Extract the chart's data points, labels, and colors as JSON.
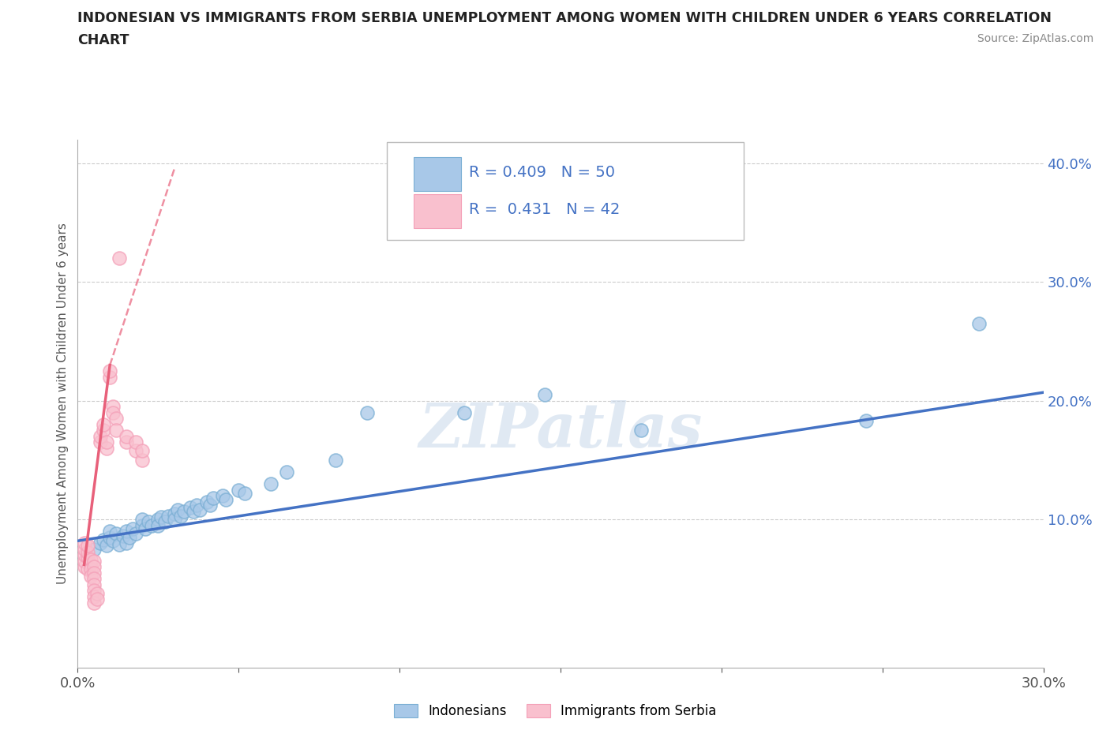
{
  "title_line1": "INDONESIAN VS IMMIGRANTS FROM SERBIA UNEMPLOYMENT AMONG WOMEN WITH CHILDREN UNDER 6 YEARS CORRELATION",
  "title_line2": "CHART",
  "source": "Source: ZipAtlas.com",
  "ylabel": "Unemployment Among Women with Children Under 6 years",
  "xlim": [
    0.0,
    0.3
  ],
  "ylim": [
    -0.025,
    0.42
  ],
  "yticks": [
    0.0,
    0.1,
    0.2,
    0.3,
    0.4
  ],
  "xticks": [
    0.0,
    0.05,
    0.1,
    0.15,
    0.2,
    0.25,
    0.3
  ],
  "xtick_labels": [
    "0.0%",
    "",
    "",
    "",
    "",
    "",
    "30.0%"
  ],
  "ytick_labels": [
    "",
    "10.0%",
    "20.0%",
    "30.0%",
    "40.0%"
  ],
  "legend1_R": "0.409",
  "legend1_N": "50",
  "legend2_R": "0.431",
  "legend2_N": "42",
  "blue_color": "#a8c8e8",
  "blue_edge_color": "#7bafd4",
  "pink_color": "#f9c0ce",
  "pink_edge_color": "#f4a0b8",
  "blue_line_color": "#4472c4",
  "pink_line_color": "#e8607a",
  "watermark": "ZIPatlas",
  "indonesian_scatter": [
    [
      0.005,
      0.075
    ],
    [
      0.007,
      0.08
    ],
    [
      0.008,
      0.083
    ],
    [
      0.009,
      0.078
    ],
    [
      0.01,
      0.085
    ],
    [
      0.01,
      0.09
    ],
    [
      0.011,
      0.082
    ],
    [
      0.012,
      0.088
    ],
    [
      0.013,
      0.079
    ],
    [
      0.014,
      0.086
    ],
    [
      0.015,
      0.08
    ],
    [
      0.015,
      0.09
    ],
    [
      0.016,
      0.085
    ],
    [
      0.017,
      0.092
    ],
    [
      0.018,
      0.088
    ],
    [
      0.02,
      0.095
    ],
    [
      0.02,
      0.1
    ],
    [
      0.021,
      0.092
    ],
    [
      0.022,
      0.098
    ],
    [
      0.023,
      0.095
    ],
    [
      0.025,
      0.1
    ],
    [
      0.025,
      0.095
    ],
    [
      0.026,
      0.102
    ],
    [
      0.027,
      0.098
    ],
    [
      0.028,
      0.103
    ],
    [
      0.03,
      0.105
    ],
    [
      0.03,
      0.1
    ],
    [
      0.031,
      0.108
    ],
    [
      0.032,
      0.103
    ],
    [
      0.033,
      0.107
    ],
    [
      0.035,
      0.11
    ],
    [
      0.036,
      0.107
    ],
    [
      0.037,
      0.112
    ],
    [
      0.038,
      0.108
    ],
    [
      0.04,
      0.115
    ],
    [
      0.041,
      0.112
    ],
    [
      0.042,
      0.118
    ],
    [
      0.045,
      0.12
    ],
    [
      0.046,
      0.117
    ],
    [
      0.05,
      0.125
    ],
    [
      0.052,
      0.122
    ],
    [
      0.06,
      0.13
    ],
    [
      0.065,
      0.14
    ],
    [
      0.08,
      0.15
    ],
    [
      0.09,
      0.19
    ],
    [
      0.12,
      0.19
    ],
    [
      0.145,
      0.205
    ],
    [
      0.175,
      0.175
    ],
    [
      0.245,
      0.183
    ],
    [
      0.28,
      0.265
    ]
  ],
  "serbian_scatter": [
    [
      0.002,
      0.06
    ],
    [
      0.002,
      0.065
    ],
    [
      0.002,
      0.07
    ],
    [
      0.002,
      0.075
    ],
    [
      0.002,
      0.08
    ],
    [
      0.003,
      0.068
    ],
    [
      0.003,
      0.072
    ],
    [
      0.003,
      0.078
    ],
    [
      0.003,
      0.058
    ],
    [
      0.004,
      0.062
    ],
    [
      0.004,
      0.066
    ],
    [
      0.004,
      0.058
    ],
    [
      0.004,
      0.052
    ],
    [
      0.005,
      0.065
    ],
    [
      0.005,
      0.06
    ],
    [
      0.005,
      0.055
    ],
    [
      0.005,
      0.05
    ],
    [
      0.005,
      0.045
    ],
    [
      0.005,
      0.04
    ],
    [
      0.005,
      0.035
    ],
    [
      0.005,
      0.03
    ],
    [
      0.006,
      0.038
    ],
    [
      0.006,
      0.033
    ],
    [
      0.007,
      0.165
    ],
    [
      0.007,
      0.17
    ],
    [
      0.008,
      0.175
    ],
    [
      0.008,
      0.18
    ],
    [
      0.009,
      0.16
    ],
    [
      0.009,
      0.165
    ],
    [
      0.01,
      0.22
    ],
    [
      0.01,
      0.225
    ],
    [
      0.011,
      0.195
    ],
    [
      0.011,
      0.19
    ],
    [
      0.012,
      0.185
    ],
    [
      0.012,
      0.175
    ],
    [
      0.013,
      0.32
    ],
    [
      0.015,
      0.165
    ],
    [
      0.015,
      0.17
    ],
    [
      0.018,
      0.158
    ],
    [
      0.018,
      0.165
    ],
    [
      0.02,
      0.15
    ],
    [
      0.02,
      0.158
    ]
  ],
  "blue_trendline": [
    [
      0.0,
      0.082
    ],
    [
      0.3,
      0.207
    ]
  ],
  "pink_trendline_solid": [
    [
      0.002,
      0.062
    ],
    [
      0.01,
      0.23
    ]
  ],
  "pink_trendline_dashed": [
    [
      0.01,
      0.23
    ],
    [
      0.03,
      0.395
    ]
  ]
}
